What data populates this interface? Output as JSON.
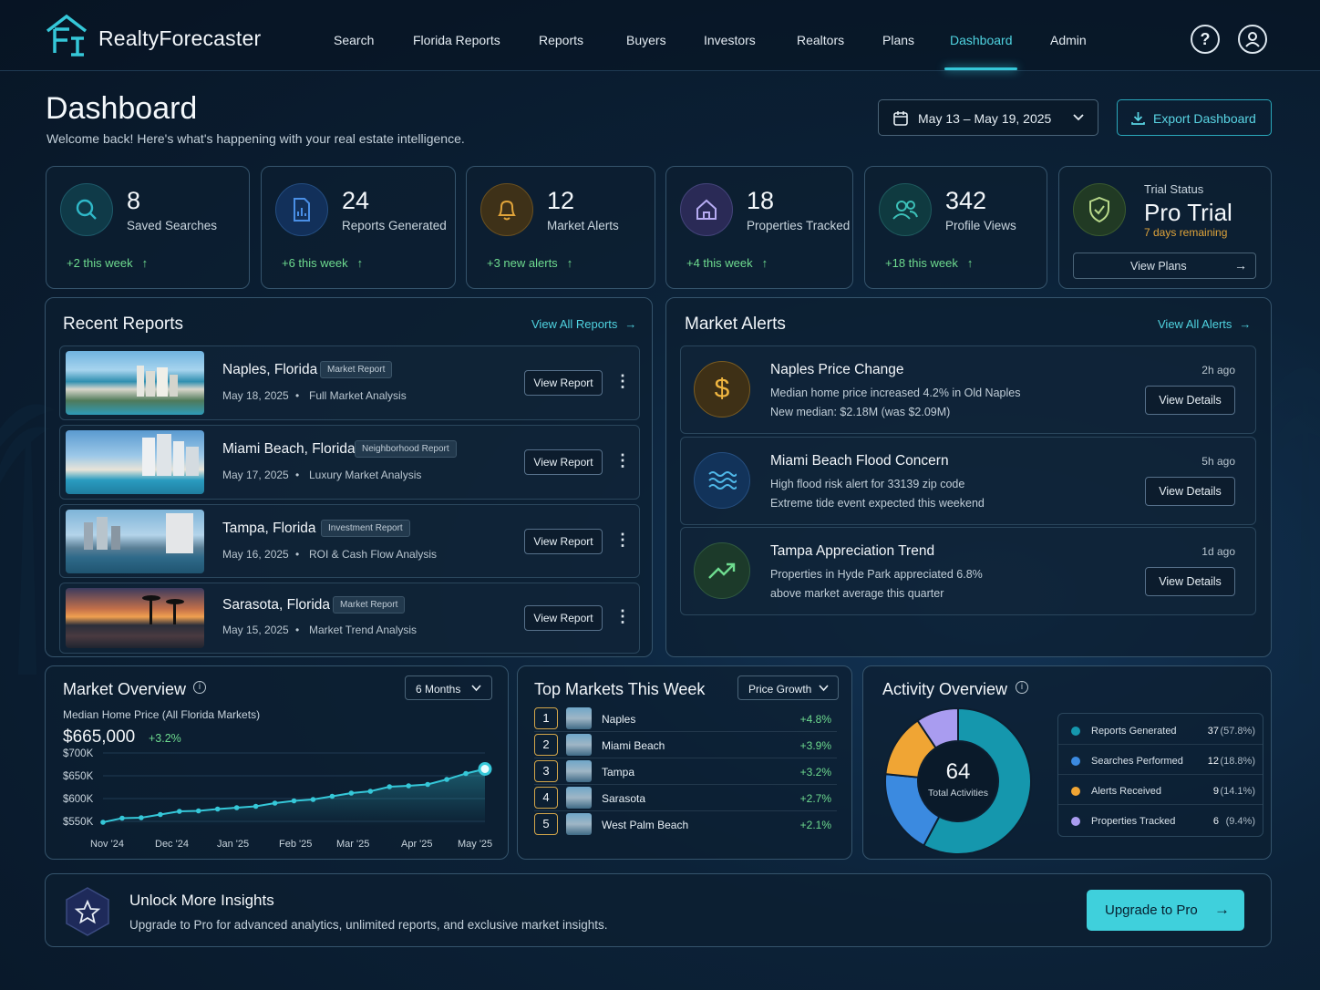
{
  "app": {
    "name": "RealtyForecaster"
  },
  "nav": {
    "items": [
      "Search",
      "Florida Reports",
      "Reports",
      "Buyers",
      "Investors",
      "Realtors",
      "Plans",
      "Dashboard",
      "Admin"
    ],
    "active": "Dashboard",
    "help_icon": "question-circle-icon",
    "profile_icon": "user-circle-icon"
  },
  "header": {
    "title": "Dashboard",
    "subtitle": "Welcome back! Here's what's happening with your real estate intelligence.",
    "date_range": "May 13 – May 19, 2025",
    "export_label": "Export Dashboard"
  },
  "stats": [
    {
      "value": "8",
      "label": "Saved Searches",
      "delta": "+2 this week",
      "icon": "search-icon",
      "color": "#2fb8c8"
    },
    {
      "value": "24",
      "label": "Reports Generated",
      "delta": "+6 this week",
      "icon": "report-icon",
      "color": "#4a8fe6"
    },
    {
      "value": "12",
      "label": "Market Alerts",
      "delta": "+3 new alerts",
      "icon": "bell-icon",
      "color": "#e0a43a"
    },
    {
      "value": "18",
      "label": "Properties Tracked",
      "delta": "+4 this week",
      "icon": "house-icon",
      "color": "#9b8be8"
    },
    {
      "value": "342",
      "label": "Profile Views",
      "delta": "+18 this week",
      "icon": "users-icon",
      "color": "#3cc0b8"
    }
  ],
  "trial": {
    "label": "Trial Status",
    "plan": "Pro Trial",
    "remaining": "7 days remaining",
    "button": "View Plans",
    "icon": "shield-check-icon"
  },
  "recent_reports": {
    "title": "Recent Reports",
    "view_all": "View All Reports",
    "button": "View Report",
    "items": [
      {
        "city": "Naples, Florida",
        "tag": "Market Report",
        "date": "May 18, 2025",
        "type": "Full Market Analysis"
      },
      {
        "city": "Miami Beach, Florida",
        "tag": "Neighborhood Report",
        "date": "May 17, 2025",
        "type": "Luxury Market Analysis"
      },
      {
        "city": "Tampa, Florida",
        "tag": "Investment Report",
        "date": "May 16, 2025",
        "type": "ROI & Cash Flow Analysis"
      },
      {
        "city": "Sarasota, Florida",
        "tag": "Market Report",
        "date": "May 15, 2025",
        "type": "Market Trend Analysis"
      }
    ]
  },
  "market_alerts": {
    "title": "Market Alerts",
    "view_all": "View All Alerts",
    "button": "View Details",
    "items": [
      {
        "title": "Naples Price Change",
        "line1": "Median home price increased 4.2% in Old Naples",
        "line2": "New median: $2.18M (was $2.09M)",
        "time": "2h ago",
        "icon": "dollar-icon"
      },
      {
        "title": "Miami Beach Flood Concern",
        "line1": "High flood risk alert for 33139 zip code",
        "line2": "Extreme tide event expected this weekend",
        "time": "5h ago",
        "icon": "waves-icon"
      },
      {
        "title": "Tampa Appreciation Trend",
        "line1": "Properties in Hyde Park appreciated 6.8%",
        "line2": "above market average this quarter",
        "time": "1d ago",
        "icon": "trend-up-icon"
      }
    ]
  },
  "market_overview": {
    "title": "Market Overview",
    "period": "6 Months",
    "subtitle": "Median Home Price (All Florida Markets)",
    "value": "$665,000",
    "change": "+3.2%"
  },
  "top_markets": {
    "title": "Top Markets This Week",
    "filter": "Price Growth",
    "items": [
      {
        "rank": "1",
        "name": "Naples",
        "value": "+4.8%"
      },
      {
        "rank": "2",
        "name": "Miami Beach",
        "value": "+3.9%"
      },
      {
        "rank": "3",
        "name": "Tampa",
        "value": "+3.2%"
      },
      {
        "rank": "4",
        "name": "Sarasota",
        "value": "+2.7%"
      },
      {
        "rank": "5",
        "name": "West Palm Beach",
        "value": "+2.1%"
      }
    ]
  },
  "activity": {
    "title": "Activity Overview",
    "total": "64",
    "total_label": "Total Activities"
  },
  "chart_data": [
    {
      "type": "line",
      "x": [
        "Nov '24",
        "Dec '24",
        "Jan '25",
        "Feb '25",
        "Mar '25",
        "Apr '25",
        "May '25"
      ],
      "y_ticks": [
        "$700K",
        "$650K",
        "$600K",
        "$550K"
      ],
      "ylim": [
        540,
        710
      ],
      "points": [
        548,
        557,
        558,
        565,
        572,
        573,
        577,
        580,
        583,
        590,
        595,
        598,
        605,
        612,
        616,
        626,
        628,
        631,
        642,
        655,
        665
      ],
      "color": "#35c7d8"
    },
    {
      "type": "pie",
      "categories": [
        "Reports Generated",
        "Searches Performed",
        "Alerts Received",
        "Properties Tracked"
      ],
      "values": [
        37,
        12,
        9,
        6
      ],
      "percents": [
        "(57.8%)",
        "(18.8%)",
        "(14.1%)",
        "(9.4%)"
      ],
      "colors": [
        "#1597ad",
        "#3b8ae0",
        "#f0a534",
        "#a99cf0"
      ]
    }
  ],
  "promo": {
    "title": "Unlock More Insights",
    "text": "Upgrade to Pro for advanced analytics, unlimited reports, and exclusive market insights.",
    "button": "Upgrade to Pro",
    "icon": "star-icon"
  }
}
